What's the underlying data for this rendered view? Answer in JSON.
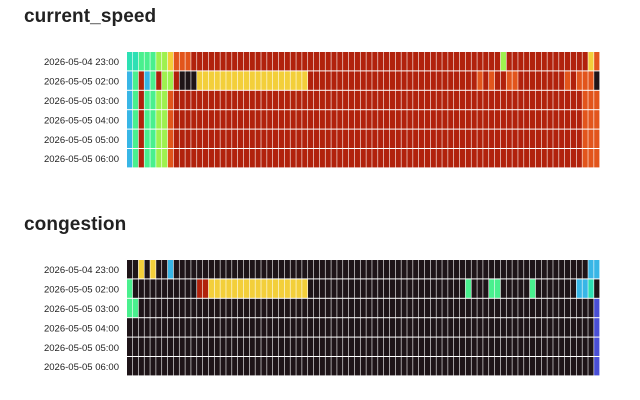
{
  "chart_data": [
    {
      "type": "heatmap",
      "title": "current_speed",
      "rows": [
        "2026-05-04 23:00",
        "2026-05-05 02:00",
        "2026-05-05 03:00",
        "2026-05-05 04:00",
        "2026-05-05 05:00",
        "2026-05-05 06:00"
      ],
      "column_count": 81,
      "colormap": "turbo",
      "value_range": [
        0,
        1
      ],
      "grid": false,
      "values": [
        "44555667888999999999999999999999999999999999999999999999999999996999999999999997877",
        "35935966900077777777777777777779999999999999999999999999999989899889999999989888",
        "359556689999999999999999999999999999999999999999999999999999999999999999999999888",
        "359556689999999999999999999999999999999999999999999999999999999999999999999999888",
        "359556689999999999999999999999999999999999999999999999999999999999999999999999888",
        "359556689999999999999999999999999999999999999999999999999999999999999999999999888"
      ]
    },
    {
      "type": "heatmap",
      "title": "congestion",
      "rows": [
        "2026-05-04 23:00",
        "2026-05-05 02:00",
        "2026-05-05 03:00",
        "2026-05-05 04:00",
        "2026-05-05 05:00",
        "2026-05-05 06:00"
      ],
      "column_count": 81,
      "colormap": "turbo",
      "value_range": [
        0,
        1
      ],
      "grid": false,
      "values": [
        "0070700300000000000000000000000000000000000000000000000000000000000000000000000335",
        "50000000000099777777777777777770000000000000000000000000005000550000050000000334",
        "550000000000000000000000000000000000000000000000000000000000000000000000000000001",
        "000000000000000000000000000000000000000000000000000000000000000000000000000000001",
        "000000000000000000000000000000000000000000000000000000000000000000000000000000001",
        "000000000000000000000000000000000000000000000000000000000000000000000000000000001"
      ]
    }
  ]
}
